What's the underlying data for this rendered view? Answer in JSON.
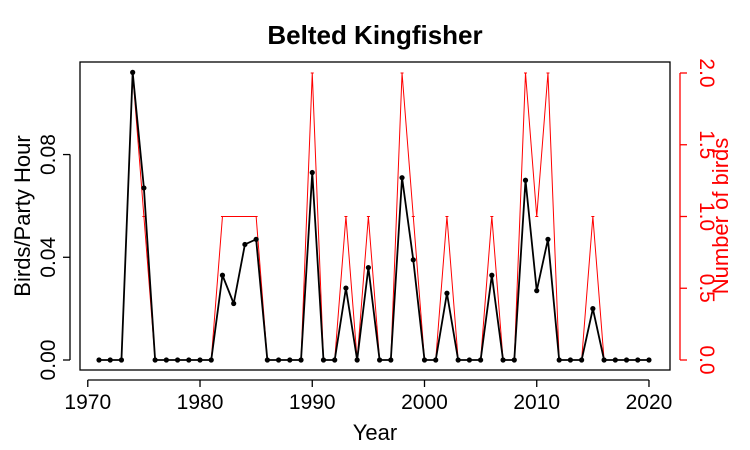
{
  "chart_data": {
    "type": "line",
    "title": "Belted Kingfisher",
    "xlabel": "Year",
    "ylabel": "Birds/Party Hour",
    "y2label": "Number of birds",
    "xlim": [
      1970,
      2020
    ],
    "ylim": [
      0,
      0.112
    ],
    "y2lim": [
      0,
      2.0
    ],
    "x_ticks": [
      1970,
      1980,
      1990,
      2000,
      2010,
      2020
    ],
    "y_ticks": [
      0.0,
      0.04,
      0.08
    ],
    "y_tick_labels": [
      "0.00",
      "0.04",
      "0.08"
    ],
    "y2_ticks": [
      0.0,
      0.5,
      1.0,
      1.5,
      2.0
    ],
    "y2_tick_labels": [
      "0.0",
      "0.5",
      "1.0",
      "1.5",
      "2.0"
    ],
    "grid": false,
    "colors": {
      "primary": "#000000",
      "secondary": "#ff0000"
    },
    "x": [
      1971,
      1972,
      1973,
      1974,
      1975,
      1976,
      1977,
      1978,
      1979,
      1980,
      1981,
      1982,
      1983,
      1984,
      1985,
      1986,
      1987,
      1988,
      1989,
      1990,
      1991,
      1992,
      1993,
      1994,
      1995,
      1996,
      1997,
      1998,
      1999,
      2000,
      2001,
      2002,
      2003,
      2004,
      2005,
      2006,
      2007,
      2008,
      2009,
      2010,
      2011,
      2012,
      2013,
      2014,
      2015,
      2016,
      2017,
      2018,
      2019,
      2020
    ],
    "series": [
      {
        "axis": "left",
        "color": "#000000",
        "markers": true,
        "values": [
          0,
          0,
          0,
          0.112,
          0.067,
          0,
          0,
          0,
          0,
          0,
          0,
          0.033,
          0.022,
          0.045,
          0.047,
          0,
          0,
          0,
          0,
          0.073,
          0,
          0,
          0.028,
          0,
          0.036,
          0,
          0,
          0.071,
          0.039,
          0,
          0,
          0.026,
          0,
          0,
          0,
          0.033,
          0,
          0,
          0.07,
          0.027,
          0.047,
          0,
          0,
          0,
          0.02,
          0,
          0,
          0,
          0,
          0
        ]
      },
      {
        "axis": "right",
        "color": "#ff0000",
        "markers": false,
        "values": [
          0,
          0,
          0,
          2,
          1,
          0,
          0,
          0,
          0,
          0,
          0,
          1,
          1,
          1,
          1,
          0,
          0,
          0,
          0,
          2,
          0,
          0,
          1,
          0,
          1,
          0,
          0,
          2,
          1,
          0,
          0,
          1,
          0,
          0,
          0,
          1,
          0,
          0,
          2,
          1,
          2,
          0,
          0,
          0,
          1,
          0,
          0,
          0,
          0,
          0
        ]
      }
    ]
  }
}
